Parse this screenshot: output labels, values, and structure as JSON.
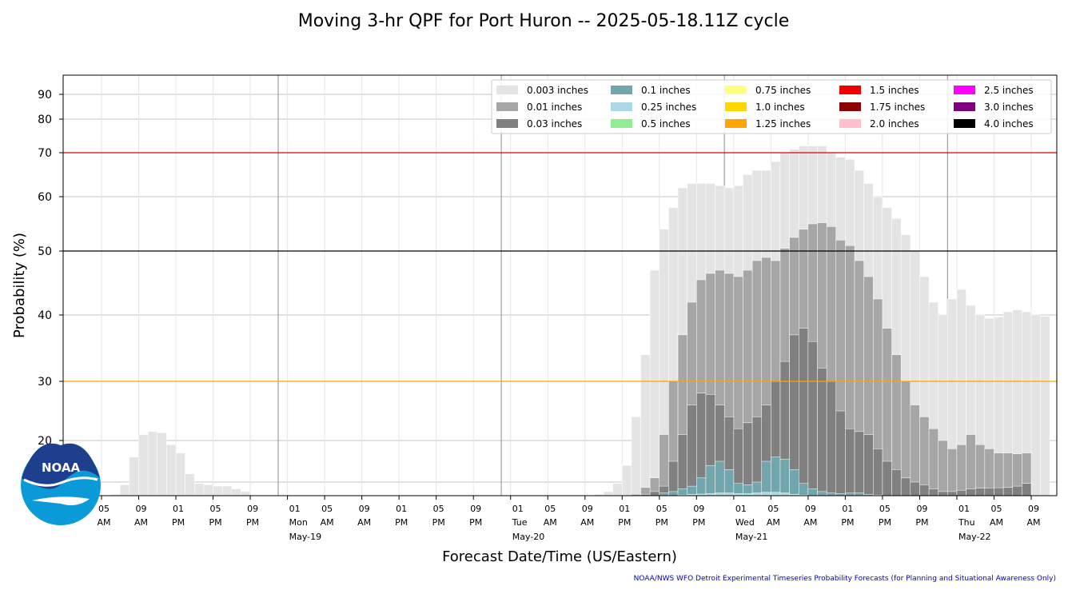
{
  "chart_data": {
    "type": "bar",
    "title": "Moving 3-hr QPF for Port Huron -- 2025-05-18.11Z cycle",
    "xlabel": "Forecast Date/Time (US/Eastern)",
    "ylabel": "Probability (%)",
    "ylim": [
      0,
      100
    ],
    "y_ticks": [
      20,
      30,
      40,
      50,
      60,
      70,
      80,
      90
    ],
    "y_tick_labels": [
      "20",
      "30",
      "40",
      "50",
      "60",
      "70",
      "80",
      "90"
    ],
    "y_scale": "nonlinear (probability-stretched)",
    "grid": true,
    "legend_position": "top-right",
    "x_time_axis": {
      "start_hour_offset": 0,
      "hours_per_bar": 1
    },
    "x_ticks": [
      {
        "hour": 5,
        "label1": "05",
        "label2": "AM",
        "label3": ""
      },
      {
        "hour": 9,
        "label1": "09",
        "label2": "AM",
        "label3": ""
      },
      {
        "hour": 13,
        "label1": "01",
        "label2": "PM",
        "label3": ""
      },
      {
        "hour": 17,
        "label1": "05",
        "label2": "PM",
        "label3": ""
      },
      {
        "hour": 21,
        "label1": "09",
        "label2": "PM",
        "label3": ""
      },
      {
        "hour": 25,
        "label1": "01",
        "label2": "Mon",
        "label3": "May-19"
      },
      {
        "hour": 29,
        "label1": "05",
        "label2": "AM",
        "label3": ""
      },
      {
        "hour": 33,
        "label1": "09",
        "label2": "AM",
        "label3": ""
      },
      {
        "hour": 37,
        "label1": "01",
        "label2": "PM",
        "label3": ""
      },
      {
        "hour": 41,
        "label1": "05",
        "label2": "PM",
        "label3": ""
      },
      {
        "hour": 45,
        "label1": "09",
        "label2": "PM",
        "label3": ""
      },
      {
        "hour": 49,
        "label1": "01",
        "label2": "Tue",
        "label3": "May-20"
      },
      {
        "hour": 53,
        "label1": "05",
        "label2": "AM",
        "label3": ""
      },
      {
        "hour": 57,
        "label1": "09",
        "label2": "AM",
        "label3": ""
      },
      {
        "hour": 61,
        "label1": "01",
        "label2": "PM",
        "label3": ""
      },
      {
        "hour": 65,
        "label1": "05",
        "label2": "PM",
        "label3": ""
      },
      {
        "hour": 69,
        "label1": "09",
        "label2": "PM",
        "label3": ""
      },
      {
        "hour": 73,
        "label1": "01",
        "label2": "Wed",
        "label3": "May-21"
      },
      {
        "hour": 77,
        "label1": "05",
        "label2": "AM",
        "label3": ""
      },
      {
        "hour": 81,
        "label1": "09",
        "label2": "AM",
        "label3": ""
      },
      {
        "hour": 85,
        "label1": "01",
        "label2": "PM",
        "label3": ""
      },
      {
        "hour": 89,
        "label1": "05",
        "label2": "PM",
        "label3": ""
      },
      {
        "hour": 93,
        "label1": "09",
        "label2": "PM",
        "label3": ""
      },
      {
        "hour": 97,
        "label1": "01",
        "label2": "Thu",
        "label3": "May-22"
      },
      {
        "hour": 101,
        "label1": "05",
        "label2": "AM",
        "label3": ""
      },
      {
        "hour": 105,
        "label1": "09",
        "label2": "AM",
        "label3": ""
      }
    ],
    "day_boundaries": [
      24,
      48,
      72,
      96
    ],
    "reference_lines": [
      {
        "y": 70,
        "color": "#dd0000"
      },
      {
        "y": 50,
        "color": "#000000"
      },
      {
        "y": 30,
        "color": "#ffa500"
      }
    ],
    "series": [
      {
        "name": "0.003 inches",
        "color": "#e4e4e4",
        "values": [
          0,
          0,
          0,
          0,
          0,
          0,
          1,
          8,
          16,
          21,
          21.5,
          21.3,
          19,
          17,
          12,
          9,
          8,
          7,
          7,
          5,
          3,
          0,
          0,
          0,
          0,
          0,
          0,
          0,
          0,
          0,
          0,
          0,
          0,
          0,
          0,
          0,
          0,
          0,
          0,
          0,
          0,
          0,
          0,
          0,
          0,
          0,
          0,
          0,
          0,
          0,
          0,
          0,
          0,
          0,
          0,
          0,
          0,
          0,
          1,
          3,
          9,
          14,
          24,
          34,
          47,
          54,
          58,
          62,
          63,
          63,
          63,
          62.5,
          62,
          62.5,
          65,
          66,
          66,
          68,
          70,
          71,
          72,
          72,
          72,
          70,
          69,
          68.5,
          66,
          63,
          60,
          58,
          56,
          53,
          50,
          46,
          42,
          40,
          42.5,
          44,
          41.5,
          40,
          39.5,
          39.7,
          40.5,
          40.8,
          40.5,
          40,
          39.8
        ]
      },
      {
        "name": "0.01 inches",
        "color": "#a6a6a6",
        "values": [
          0,
          0,
          0,
          0,
          0,
          0,
          0,
          0,
          0,
          0,
          0,
          0,
          0,
          0,
          0,
          0,
          0,
          0,
          0,
          0,
          0,
          0,
          0,
          0,
          0,
          0,
          0,
          0,
          0,
          0,
          0,
          0,
          0,
          0,
          0,
          0,
          0,
          0,
          0,
          0,
          0,
          0,
          0,
          0,
          0,
          0,
          0,
          0,
          0,
          0,
          0,
          0,
          0,
          0,
          0,
          0,
          0,
          0,
          0,
          0,
          0,
          0,
          1,
          6,
          11,
          21,
          30,
          37,
          42,
          45.5,
          46.5,
          47,
          46.5,
          46,
          47,
          48.5,
          49,
          48.5,
          50.5,
          52.5,
          54,
          55,
          55.2,
          54.5,
          52,
          51,
          48.5,
          46,
          42.5,
          38,
          34,
          30,
          26,
          24,
          22,
          20,
          18,
          19,
          21,
          19,
          18,
          17,
          17,
          16.8,
          17
        ]
      },
      {
        "name": "0.03 inches",
        "color": "#808080",
        "values": [
          0,
          0,
          0,
          0,
          0,
          0,
          0,
          0,
          0,
          0,
          0,
          0,
          0,
          0,
          0,
          0,
          0,
          0,
          0,
          0,
          0,
          0,
          0,
          0,
          0,
          0,
          0,
          0,
          0,
          0,
          0,
          0,
          0,
          0,
          0,
          0,
          0,
          0,
          0,
          0,
          0,
          0,
          0,
          0,
          0,
          0,
          0,
          0,
          0,
          0,
          0,
          0,
          0,
          0,
          0,
          0,
          0,
          0,
          0,
          0,
          0,
          0,
          0,
          1,
          3,
          7,
          15,
          21,
          26,
          28,
          27.8,
          26,
          24,
          22,
          23,
          24,
          26,
          30,
          33,
          37,
          38,
          36,
          32,
          30,
          25,
          22,
          21.5,
          21,
          18,
          15,
          13,
          11,
          10,
          8,
          5,
          3,
          3,
          4,
          5,
          5.5,
          5.7,
          5.8,
          6,
          7,
          9
        ]
      },
      {
        "name": "0.1 inches",
        "color": "#72a6ad",
        "values": [
          0,
          0,
          0,
          0,
          0,
          0,
          0,
          0,
          0,
          0,
          0,
          0,
          0,
          0,
          0,
          0,
          0,
          0,
          0,
          0,
          0,
          0,
          0,
          0,
          0,
          0,
          0,
          0,
          0,
          0,
          0,
          0,
          0,
          0,
          0,
          0,
          0,
          0,
          0,
          0,
          0,
          0,
          0,
          0,
          0,
          0,
          0,
          0,
          0,
          0,
          0,
          0,
          0,
          0,
          0,
          0,
          0,
          0,
          0,
          0,
          0,
          0,
          0,
          0,
          0,
          2,
          3,
          5,
          7,
          11,
          14,
          15,
          13,
          9,
          8,
          10,
          15,
          16,
          15.5,
          13,
          9,
          5,
          3,
          2,
          1.5,
          2,
          2,
          1,
          0.5,
          0,
          0,
          0,
          0,
          0,
          0,
          0,
          0,
          0,
          0,
          0,
          0,
          0,
          0,
          0,
          0,
          0,
          0
        ]
      },
      {
        "name": "0.25 inches",
        "color": "#add8e6",
        "values": [
          0,
          0,
          0,
          0,
          0,
          0,
          0,
          0,
          0,
          0,
          0,
          0,
          0,
          0,
          0,
          0,
          0,
          0,
          0,
          0,
          0,
          0,
          0,
          0,
          0,
          0,
          0,
          0,
          0,
          0,
          0,
          0,
          0,
          0,
          0,
          0,
          0,
          0,
          0,
          0,
          0,
          0,
          0,
          0,
          0,
          0,
          0,
          0,
          0,
          0,
          0,
          0,
          0,
          0,
          0,
          0,
          0,
          0,
          0,
          0,
          0,
          0,
          0,
          0,
          0,
          0,
          0,
          0.5,
          1,
          1.2,
          1.5,
          2,
          2,
          1.5,
          1.5,
          2,
          2.5,
          2.5,
          2,
          1,
          0.5,
          0,
          0,
          0,
          0,
          0,
          0,
          0,
          0,
          0,
          0,
          0,
          0,
          0,
          0,
          0,
          0,
          0,
          0,
          0,
          0,
          0,
          0,
          0,
          0,
          0,
          0
        ]
      },
      {
        "name": "0.5 inches",
        "color": "#90ee90",
        "values": []
      },
      {
        "name": "0.75 inches",
        "color": "#ffff80",
        "values": []
      },
      {
        "name": "1.0 inches",
        "color": "#ffd700",
        "values": []
      },
      {
        "name": "1.25 inches",
        "color": "#ffa500",
        "values": []
      },
      {
        "name": "1.5 inches",
        "color": "#ee0000",
        "values": []
      },
      {
        "name": "1.75 inches",
        "color": "#8b0000",
        "values": []
      },
      {
        "name": "2.0 inches",
        "color": "#ffc0cb",
        "values": []
      },
      {
        "name": "2.5 inches",
        "color": "#ff00ff",
        "values": []
      },
      {
        "name": "3.0 inches",
        "color": "#800080",
        "values": []
      },
      {
        "name": "4.0 inches",
        "color": "#000000",
        "values": []
      }
    ]
  },
  "logo": {
    "text": "NOAA"
  },
  "credit": "NOAA/NWS WFO Detroit Experimental Timeseries Probability Forecasts (for Planning and Situational Awareness Only)"
}
